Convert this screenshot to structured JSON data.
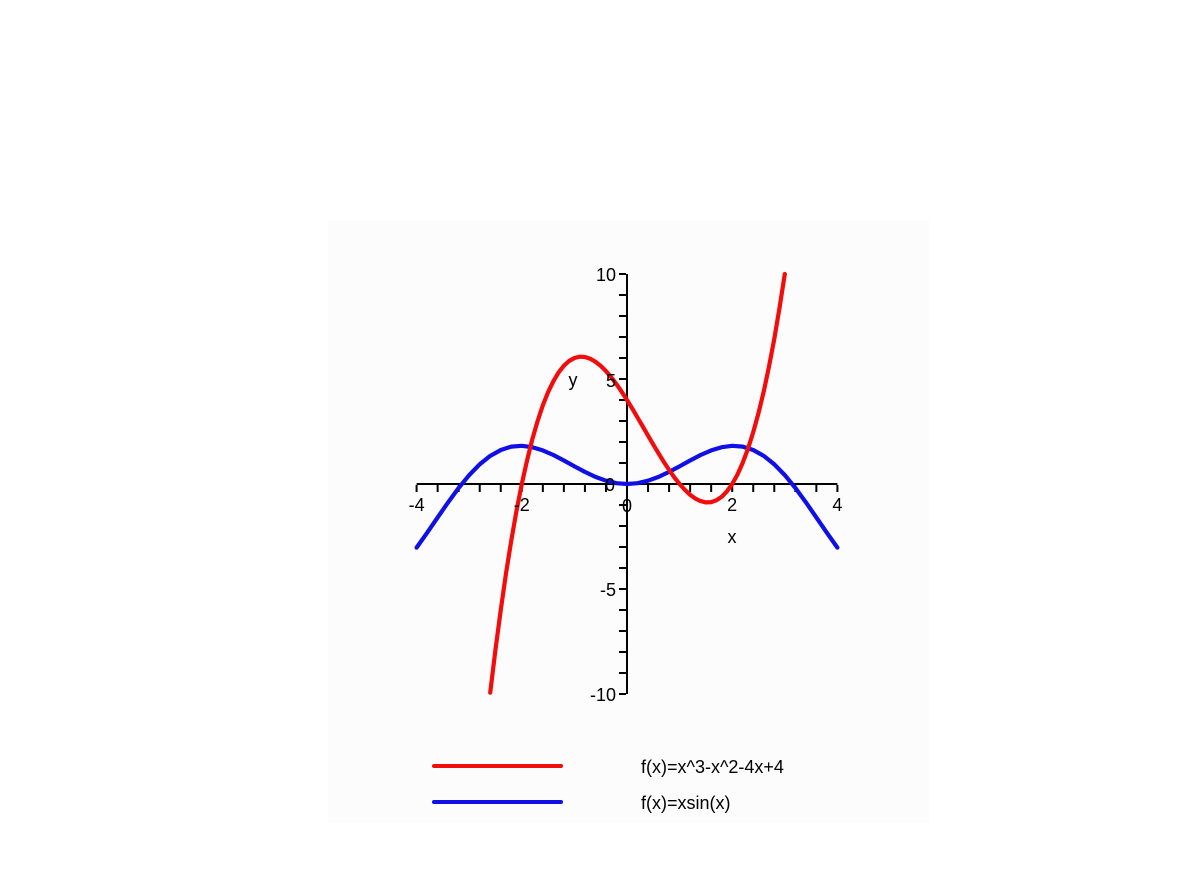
{
  "chart_data": {
    "type": "line",
    "title": "",
    "xlabel": "x",
    "ylabel": "y",
    "xlim": [
      -4,
      4
    ],
    "ylim": [
      -10,
      10
    ],
    "x_tick_labels": [
      "-4",
      "-2",
      "0",
      "2",
      "4"
    ],
    "y_tick_labels": [
      "10",
      "5",
      "0",
      "-5",
      "-10"
    ],
    "x_major_ticks": [
      -4,
      -2,
      0,
      2,
      4
    ],
    "y_major_ticks": [
      10,
      5,
      0,
      -5,
      -10
    ],
    "x_minor_step": 0.4,
    "y_minor_step": 1,
    "grid": false,
    "axis_color": "#000000",
    "legend_position": "bottom",
    "series": [
      {
        "name": "f(x)=x^3-x^2-4x+4",
        "color": "#f20c0c",
        "x": [
          -2.6,
          -2.5,
          -2.4,
          -2.3,
          -2.2,
          -2.1,
          -2,
          -1.9,
          -1.8,
          -1.7,
          -1.6,
          -1.5,
          -1.4,
          -1.3,
          -1.2,
          -1.1,
          -1,
          -0.9,
          -0.8,
          -0.7,
          -0.6,
          -0.5,
          -0.4,
          -0.3,
          -0.2,
          -0.1,
          0,
          0.1,
          0.2,
          0.3,
          0.4,
          0.5,
          0.6,
          0.7,
          0.8,
          0.9,
          1,
          1.1,
          1.2,
          1.3,
          1.4,
          1.5,
          1.6,
          1.7,
          1.8,
          1.9,
          2,
          2.1,
          2.2,
          2.3,
          2.4,
          2.5,
          2.6,
          2.7,
          2.8,
          2.9,
          3
        ],
        "y": [
          -9.936,
          -7.875,
          -5.984,
          -4.257,
          -2.688,
          -1.271,
          0,
          1.131,
          2.128,
          2.997,
          3.744,
          4.375,
          4.896,
          5.313,
          5.632,
          5.859,
          6,
          6.061,
          6.048,
          5.967,
          5.824,
          5.625,
          5.376,
          5.083,
          4.752,
          4.389,
          4,
          3.591,
          3.168,
          2.737,
          2.304,
          1.875,
          1.456,
          1.053,
          0.672,
          0.319,
          0,
          -0.279,
          -0.512,
          -0.693,
          -0.816,
          -0.875,
          -0.864,
          -0.777,
          -0.608,
          -0.351,
          0,
          0.451,
          1.008,
          1.677,
          2.464,
          3.375,
          4.416,
          5.593,
          6.912,
          8.379,
          10
        ]
      },
      {
        "name": "f(x)=xsin(x)",
        "color": "#1010e6",
        "x": [
          -4,
          -3.8,
          -3.6,
          -3.4,
          -3.2,
          -3,
          -2.8,
          -2.6,
          -2.4,
          -2.2,
          -2,
          -1.8,
          -1.6,
          -1.4,
          -1.2,
          -1,
          -0.8,
          -0.6,
          -0.4,
          -0.2,
          0,
          0.2,
          0.4,
          0.6,
          0.8,
          1,
          1.2,
          1.4,
          1.6,
          1.8,
          2,
          2.2,
          2.4,
          2.6,
          2.8,
          3,
          3.2,
          3.4,
          3.6,
          3.8,
          4
        ],
        "y": [
          -3.027,
          -2.325,
          -1.593,
          -0.869,
          -0.187,
          0.423,
          0.938,
          1.34,
          1.621,
          1.779,
          1.819,
          1.753,
          1.599,
          1.38,
          1.119,
          0.841,
          0.574,
          0.339,
          0.156,
          0.04,
          0,
          0.04,
          0.156,
          0.339,
          0.574,
          0.841,
          1.119,
          1.38,
          1.599,
          1.753,
          1.819,
          1.779,
          1.621,
          1.34,
          0.938,
          0.423,
          -0.187,
          -0.869,
          -1.593,
          -2.325,
          -3.027
        ]
      }
    ]
  },
  "legend": {
    "items": [
      {
        "label": "f(x)=x^3-x^2-4x+4",
        "color": "#f20c0c"
      },
      {
        "label": "f(x)=xsin(x)",
        "color": "#1010e6"
      }
    ]
  }
}
